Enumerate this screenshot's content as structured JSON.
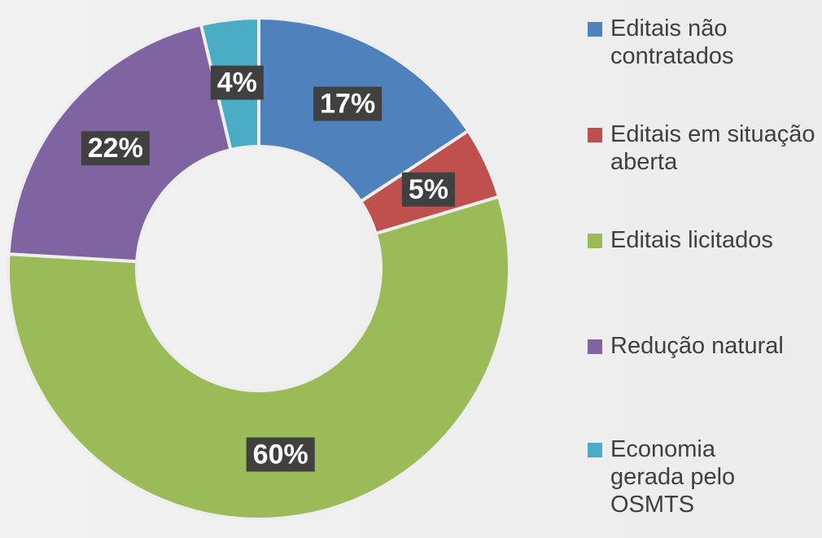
{
  "chart_data": {
    "type": "donut",
    "categories": [
      "Editais não contratados",
      "Editais em situação aberta",
      "Editais licitados",
      "Redução natural",
      "Economia gerada pelo OSMTS"
    ],
    "values": [
      17,
      5,
      60,
      22,
      4
    ],
    "value_labels": [
      "17%",
      "5%",
      "60%",
      "22%",
      "4%"
    ],
    "colors": [
      "#4f81bd",
      "#c0504d",
      "#9bbb59",
      "#8064a2",
      "#4bacc6"
    ],
    "legend": "right"
  }
}
